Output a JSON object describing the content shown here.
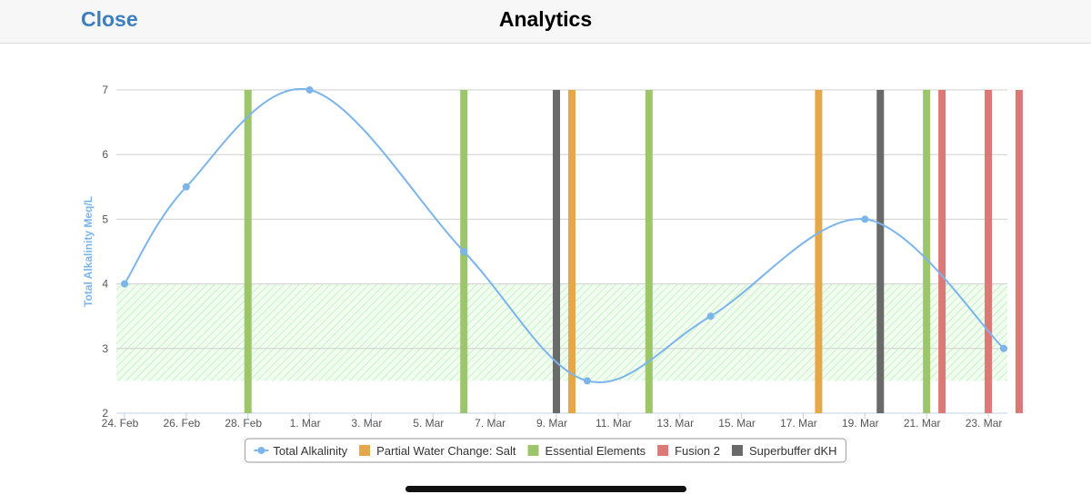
{
  "header": {
    "close_label": "Close",
    "title": "Analytics"
  },
  "chart_data": {
    "type": "line",
    "ylabel": "Total Alkalinity Meq/L",
    "ylim": [
      2,
      7
    ],
    "yticks": [
      2,
      3,
      4,
      5,
      6,
      7
    ],
    "xticks": [
      "24. Feb",
      "26. Feb",
      "28. Feb",
      "1. Mar",
      "3. Mar",
      "5. Mar",
      "7. Mar",
      "9. Mar",
      "11. Mar",
      "13. Mar",
      "15. Mar",
      "17. Mar",
      "19. Mar",
      "21. Mar",
      "23. Mar"
    ],
    "x_range": [
      "2023-02-24",
      "2023-03-24T12:00"
    ],
    "grid": true,
    "legend_position": "bottom-center",
    "target_band": {
      "from": 2.5,
      "to": 4,
      "color": "#90ee90"
    },
    "series": [
      {
        "name": "Total Alkalinity",
        "color": "#7cb5ec",
        "points": [
          {
            "x": "2023-02-24",
            "y": 4
          },
          {
            "x": "2023-02-26",
            "y": 5.5
          },
          {
            "x": "2023-03-02",
            "y": 7
          },
          {
            "x": "2023-03-07",
            "y": 4.5
          },
          {
            "x": "2023-03-11",
            "y": 2.5
          },
          {
            "x": "2023-03-15",
            "y": 3.5
          },
          {
            "x": "2023-03-20",
            "y": 5
          },
          {
            "x": "2023-03-24T12:00",
            "y": 3
          }
        ]
      }
    ],
    "events": [
      {
        "name": "Partial Water Change: Salt",
        "color": "#e4a84a",
        "dates": [
          "2023-03-10T12:00",
          "2023-03-18T12:00"
        ]
      },
      {
        "name": "Essential Elements",
        "color": "#9dc56a",
        "dates": [
          "2023-02-28",
          "2023-03-07",
          "2023-03-13",
          "2023-03-22"
        ]
      },
      {
        "name": "Fusion 2",
        "color": "#dc7876",
        "dates": [
          "2023-03-22T12:00",
          "2023-03-24",
          "2023-03-25"
        ]
      },
      {
        "name": "Superbuffer dKH",
        "color": "#6a6a6a",
        "dates": [
          "2023-03-10",
          "2023-03-20T12:00"
        ]
      }
    ]
  }
}
